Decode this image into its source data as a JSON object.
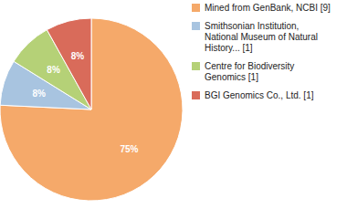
{
  "chart_data": {
    "type": "pie",
    "categories": [
      "Mined from GenBank, NCBI [9]",
      "Smithsonian Institution,\nNational Museum of Natural\nHistory... [1]",
      "Centre for Biodiversity\nGenomics [1]",
      "BGI Genomics Co., Ltd. [1]"
    ],
    "values": [
      75,
      8,
      8,
      8
    ],
    "value_labels": [
      "75%",
      "8%",
      "8%",
      "8%"
    ],
    "colors": [
      "#F5A96A",
      "#A8C4E0",
      "#B5D177",
      "#D96B5A"
    ],
    "data_labels": true,
    "legend": "right"
  }
}
